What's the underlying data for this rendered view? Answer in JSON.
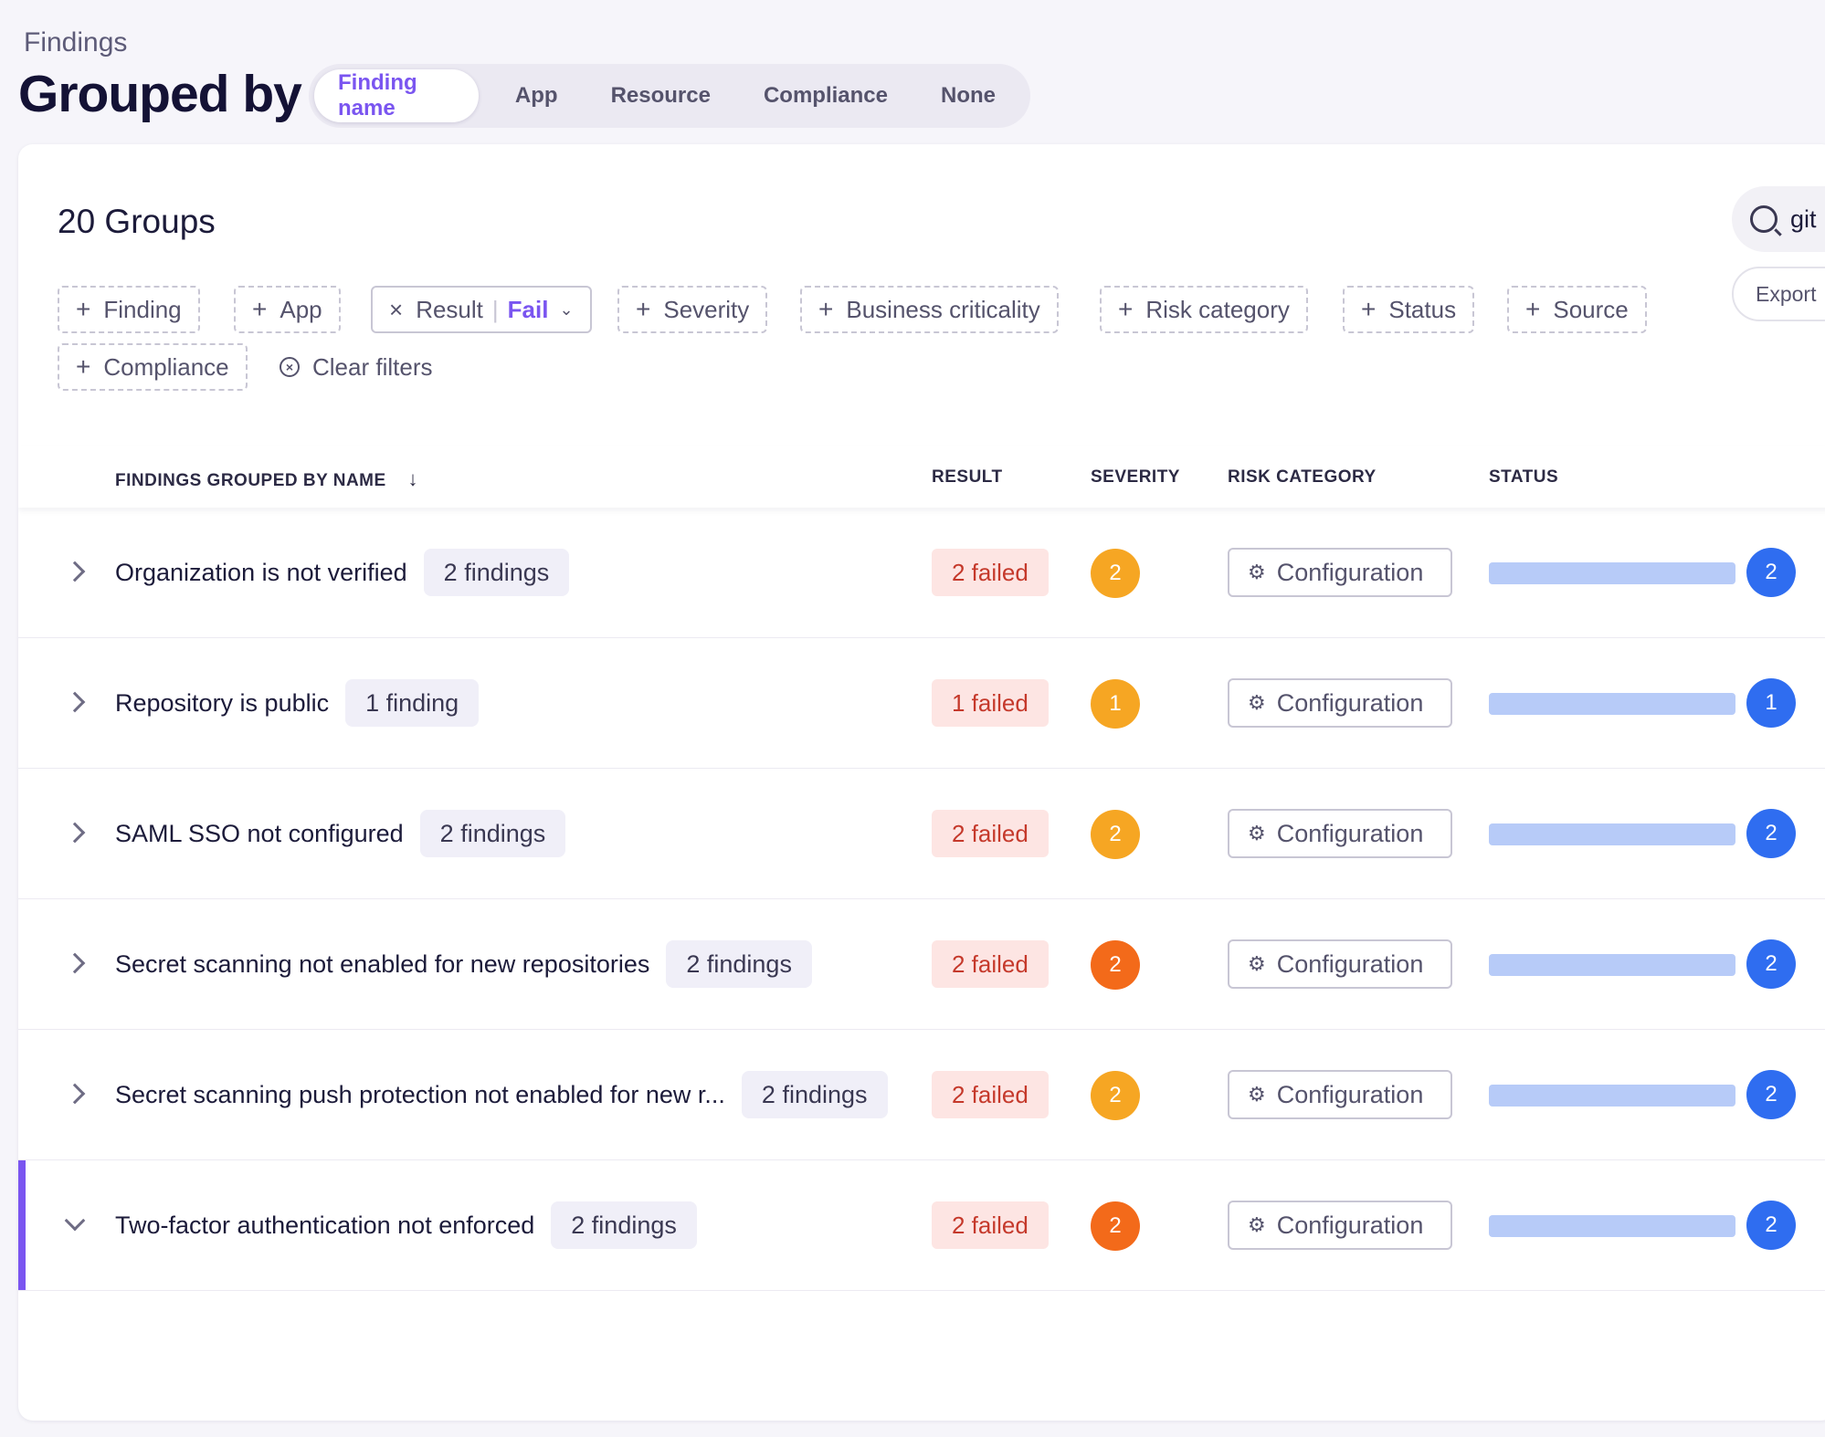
{
  "header": {
    "breadcrumb": "Findings",
    "title": "Grouped by",
    "group_options": [
      "Finding name",
      "App",
      "Resource",
      "Compliance",
      "None"
    ],
    "active_group": "Finding name"
  },
  "toolbar": {
    "groups_count": "20 Groups",
    "search_value": "git",
    "export_label": "Export",
    "clear_filters": "Clear filters"
  },
  "filters": {
    "finding": "Finding",
    "app": "App",
    "result_label": "Result",
    "result_value": "Fail",
    "severity": "Severity",
    "business_criticality": "Business criticality",
    "risk_category": "Risk category",
    "status": "Status",
    "source": "Source",
    "compliance": "Compliance"
  },
  "table": {
    "columns": {
      "name": "FINDINGS GROUPED BY NAME",
      "result": "RESULT",
      "severity": "SEVERITY",
      "risk_category": "RISK CATEGORY",
      "status": "STATUS"
    },
    "rows": [
      {
        "name": "Organization is not verified",
        "count": "2 findings",
        "result": "2 failed",
        "severity": "2",
        "severity_color": "#f6a623",
        "risk": "Configuration",
        "status_count": "2",
        "expanded": false
      },
      {
        "name": "Repository is public",
        "count": "1 finding",
        "result": "1 failed",
        "severity": "1",
        "severity_color": "#f6a623",
        "risk": "Configuration",
        "status_count": "1",
        "expanded": false
      },
      {
        "name": "SAML SSO not configured",
        "count": "2 findings",
        "result": "2 failed",
        "severity": "2",
        "severity_color": "#f6a623",
        "risk": "Configuration",
        "status_count": "2",
        "expanded": false
      },
      {
        "name": "Secret scanning not enabled for new repositories",
        "count": "2 findings",
        "result": "2 failed",
        "severity": "2",
        "severity_color": "#f36a1a",
        "risk": "Configuration",
        "status_count": "2",
        "expanded": false
      },
      {
        "name": "Secret scanning push protection not enabled for new r...",
        "count": "2 findings",
        "result": "2 failed",
        "severity": "2",
        "severity_color": "#f6a623",
        "risk": "Configuration",
        "status_count": "2",
        "expanded": false
      },
      {
        "name": "Two-factor authentication not enforced",
        "count": "2 findings",
        "result": "2 failed",
        "severity": "2",
        "severity_color": "#f36a1a",
        "risk": "Configuration",
        "status_count": "2",
        "expanded": true
      }
    ]
  },
  "colors": {
    "accent": "#7a55f0",
    "failed_bg": "#fde5e3",
    "failed_text": "#c5392b",
    "status_blue": "#2f6df0",
    "status_bar": "#b7cbf8"
  }
}
